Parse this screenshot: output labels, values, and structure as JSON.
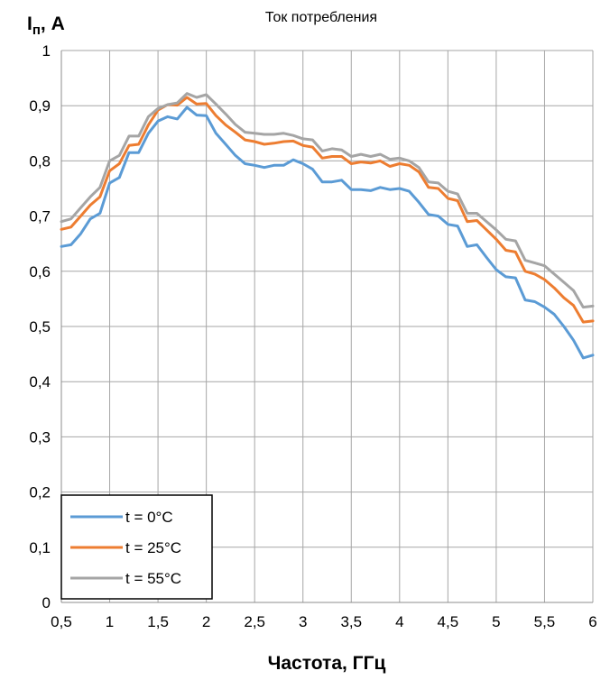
{
  "chart_data": {
    "type": "line",
    "title": "Ток потребления",
    "xlabel": "Частота, ГГц",
    "ylabel": {
      "base": "I",
      "sub": "п",
      "rest": ", А"
    },
    "xlim": [
      0.5,
      6
    ],
    "ylim": [
      0,
      1
    ],
    "xticks": [
      "0,5",
      "1",
      "1,5",
      "2",
      "2,5",
      "3",
      "3,5",
      "4",
      "4,5",
      "5",
      "5,5",
      "6"
    ],
    "yticks": [
      "0",
      "0,1",
      "0,2",
      "0,3",
      "0,4",
      "0,5",
      "0,6",
      "0,7",
      "0,8",
      "0,9",
      "1"
    ],
    "grid": true,
    "legend_position": "bottom-left",
    "x": [
      0.5,
      0.6,
      0.7,
      0.8,
      0.9,
      1.0,
      1.1,
      1.2,
      1.3,
      1.4,
      1.5,
      1.6,
      1.7,
      1.8,
      1.9,
      2.0,
      2.1,
      2.2,
      2.3,
      2.4,
      2.5,
      2.6,
      2.7,
      2.8,
      2.9,
      3.0,
      3.1,
      3.2,
      3.3,
      3.4,
      3.5,
      3.6,
      3.7,
      3.8,
      3.9,
      4.0,
      4.1,
      4.2,
      4.3,
      4.4,
      4.5,
      4.6,
      4.7,
      4.8,
      4.9,
      5.0,
      5.1,
      5.2,
      5.3,
      5.4,
      5.5,
      5.6,
      5.7,
      5.8,
      5.9,
      6.0
    ],
    "series": [
      {
        "name": "t = 0°C",
        "color": "#5b9bd5",
        "values": [
          0.645,
          0.648,
          0.668,
          0.695,
          0.705,
          0.76,
          0.77,
          0.815,
          0.815,
          0.85,
          0.872,
          0.88,
          0.876,
          0.897,
          0.883,
          0.882,
          0.85,
          0.83,
          0.81,
          0.795,
          0.792,
          0.788,
          0.792,
          0.792,
          0.802,
          0.795,
          0.785,
          0.762,
          0.762,
          0.765,
          0.748,
          0.748,
          0.746,
          0.752,
          0.748,
          0.75,
          0.745,
          0.725,
          0.703,
          0.7,
          0.685,
          0.682,
          0.645,
          0.648,
          0.625,
          0.603,
          0.59,
          0.588,
          0.548,
          0.545,
          0.535,
          0.522,
          0.5,
          0.475,
          0.443,
          0.448
        ]
      },
      {
        "name": "t = 25°C",
        "color": "#ed7d31",
        "values": [
          0.676,
          0.68,
          0.7,
          0.72,
          0.735,
          0.782,
          0.795,
          0.828,
          0.83,
          0.865,
          0.892,
          0.902,
          0.901,
          0.915,
          0.903,
          0.904,
          0.882,
          0.865,
          0.852,
          0.838,
          0.835,
          0.83,
          0.832,
          0.835,
          0.836,
          0.828,
          0.825,
          0.805,
          0.808,
          0.808,
          0.795,
          0.798,
          0.796,
          0.8,
          0.79,
          0.795,
          0.792,
          0.78,
          0.752,
          0.75,
          0.732,
          0.728,
          0.69,
          0.692,
          0.675,
          0.658,
          0.638,
          0.635,
          0.6,
          0.595,
          0.585,
          0.57,
          0.552,
          0.538,
          0.508,
          0.51
        ]
      },
      {
        "name": "t = 55°C",
        "color": "#a5a5a5",
        "values": [
          0.69,
          0.695,
          0.715,
          0.735,
          0.752,
          0.8,
          0.81,
          0.845,
          0.845,
          0.88,
          0.895,
          0.902,
          0.905,
          0.922,
          0.915,
          0.92,
          0.903,
          0.885,
          0.866,
          0.852,
          0.85,
          0.848,
          0.848,
          0.85,
          0.846,
          0.84,
          0.838,
          0.818,
          0.822,
          0.82,
          0.808,
          0.812,
          0.808,
          0.812,
          0.803,
          0.805,
          0.8,
          0.788,
          0.762,
          0.76,
          0.745,
          0.74,
          0.705,
          0.705,
          0.69,
          0.675,
          0.658,
          0.655,
          0.62,
          0.615,
          0.61,
          0.595,
          0.58,
          0.565,
          0.535,
          0.537
        ]
      }
    ]
  }
}
